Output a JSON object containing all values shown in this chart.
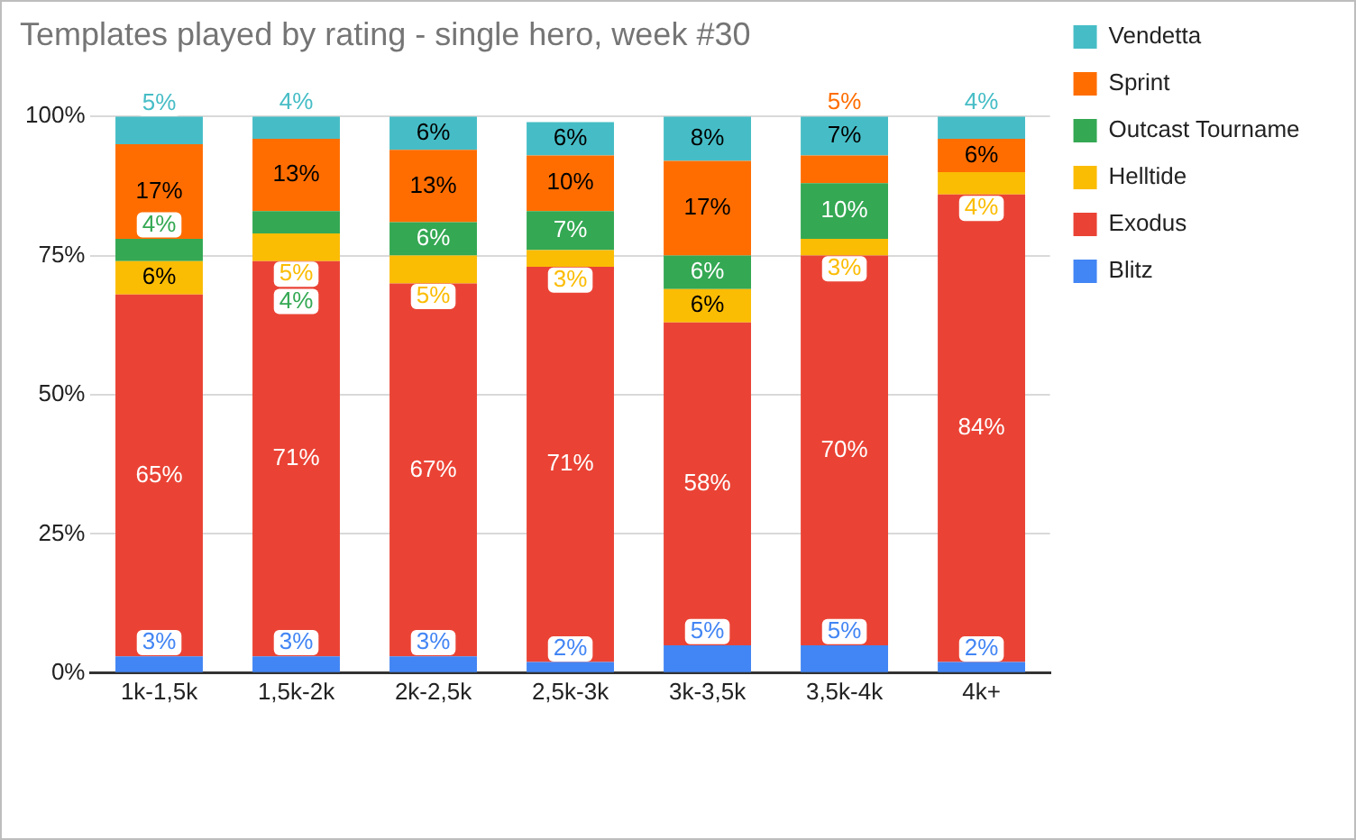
{
  "chart_data": {
    "type": "bar",
    "stacked": true,
    "title": "Templates played by rating - single hero, week #30",
    "categories": [
      "1k-1,5k",
      "1,5k-2k",
      "2k-2,5k",
      "2,5k-3k",
      "3k-3,5k",
      "3,5k-4k",
      "4k+"
    ],
    "series": [
      {
        "name": "Blitz",
        "color": "#4285f4",
        "values": [
          3,
          3,
          3,
          2,
          5,
          5,
          2
        ],
        "value_labels": [
          "3%",
          "3%",
          "3%",
          "2%",
          "5%",
          "5%",
          "2%"
        ]
      },
      {
        "name": "Exodus",
        "color": "#ea4335",
        "values": [
          65,
          71,
          67,
          71,
          58,
          70,
          84
        ],
        "value_labels": [
          "65%",
          "71%",
          "67%",
          "71%",
          "58%",
          "70%",
          "84%"
        ]
      },
      {
        "name": "Helltide",
        "color": "#fbbc04",
        "values": [
          6,
          5,
          5,
          3,
          6,
          3,
          4
        ],
        "value_labels": [
          "6%",
          "5%",
          "5%",
          "3%",
          "6%",
          "3%",
          "4%"
        ]
      },
      {
        "name": "Outcast Tourname",
        "color": "#34a853",
        "values": [
          4,
          4,
          6,
          7,
          6,
          10,
          null
        ],
        "value_labels": [
          "4%",
          "4%",
          "6%",
          "7%",
          "6%",
          "10%",
          null
        ]
      },
      {
        "name": "Sprint",
        "color": "#ff6d01",
        "values": [
          17,
          13,
          13,
          10,
          17,
          5,
          6
        ],
        "value_labels": [
          "17%",
          "13%",
          "13%",
          "10%",
          "17%",
          "5%",
          "6%"
        ]
      },
      {
        "name": "Vendetta",
        "color": "#46bdc6",
        "values": [
          5,
          4,
          6,
          6,
          8,
          7,
          4
        ],
        "value_labels": [
          "5%",
          "4%",
          "6%",
          "6%",
          "8%",
          "7%",
          "4%"
        ]
      }
    ],
    "ylim": [
      0,
      100
    ],
    "yticks": [
      {
        "value": 0,
        "label": "0%"
      },
      {
        "value": 25,
        "label": "25%"
      },
      {
        "value": 50,
        "label": "50%"
      },
      {
        "value": 75,
        "label": "75%"
      },
      {
        "value": 100,
        "label": "100%"
      }
    ],
    "grid": "y",
    "legend": "right"
  }
}
